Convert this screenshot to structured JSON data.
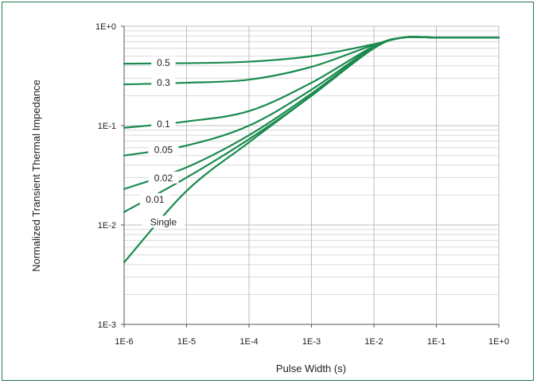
{
  "chart_data": {
    "type": "line",
    "title": "",
    "xlabel": "Pulse Width (s)",
    "ylabel": "Normalized Transient Thermal Impedance",
    "xscale": "log",
    "yscale": "log",
    "xlim": [
      1e-06,
      1
    ],
    "ylim": [
      0.001,
      1
    ],
    "x_tick_labels": [
      "1E-6",
      "1E-5",
      "1E-4",
      "1E-3",
      "1E-2",
      "1E-1",
      "1E+0"
    ],
    "y_tick_labels": [
      "1E-3",
      "1E-2",
      "1E-1",
      "1E+0"
    ],
    "grid": true,
    "line_color": "#1a8a4e",
    "frame_color": "#1f7a4a",
    "x": [
      1e-06,
      1e-05,
      0.0001,
      0.001,
      0.01,
      0.03,
      0.1,
      1
    ],
    "series": [
      {
        "name": "0.5",
        "values": [
          0.42,
          0.425,
          0.44,
          0.5,
          0.66,
          0.77,
          0.77,
          0.77
        ]
      },
      {
        "name": "0.3",
        "values": [
          0.26,
          0.27,
          0.29,
          0.39,
          0.65,
          0.77,
          0.77,
          0.77
        ]
      },
      {
        "name": "0.1",
        "values": [
          0.095,
          0.11,
          0.14,
          0.27,
          0.63,
          0.77,
          0.77,
          0.77
        ]
      },
      {
        "name": "0.05",
        "values": [
          0.05,
          0.063,
          0.1,
          0.23,
          0.62,
          0.77,
          0.77,
          0.77
        ]
      },
      {
        "name": "0.02",
        "values": [
          0.023,
          0.038,
          0.08,
          0.21,
          0.61,
          0.77,
          0.77,
          0.77
        ]
      },
      {
        "name": "0.01",
        "values": [
          0.0135,
          0.03,
          0.073,
          0.2,
          0.61,
          0.77,
          0.77,
          0.77
        ]
      },
      {
        "name": "Single",
        "values": [
          0.0042,
          0.022,
          0.068,
          0.2,
          0.6,
          0.77,
          0.77,
          0.77
        ]
      }
    ]
  }
}
